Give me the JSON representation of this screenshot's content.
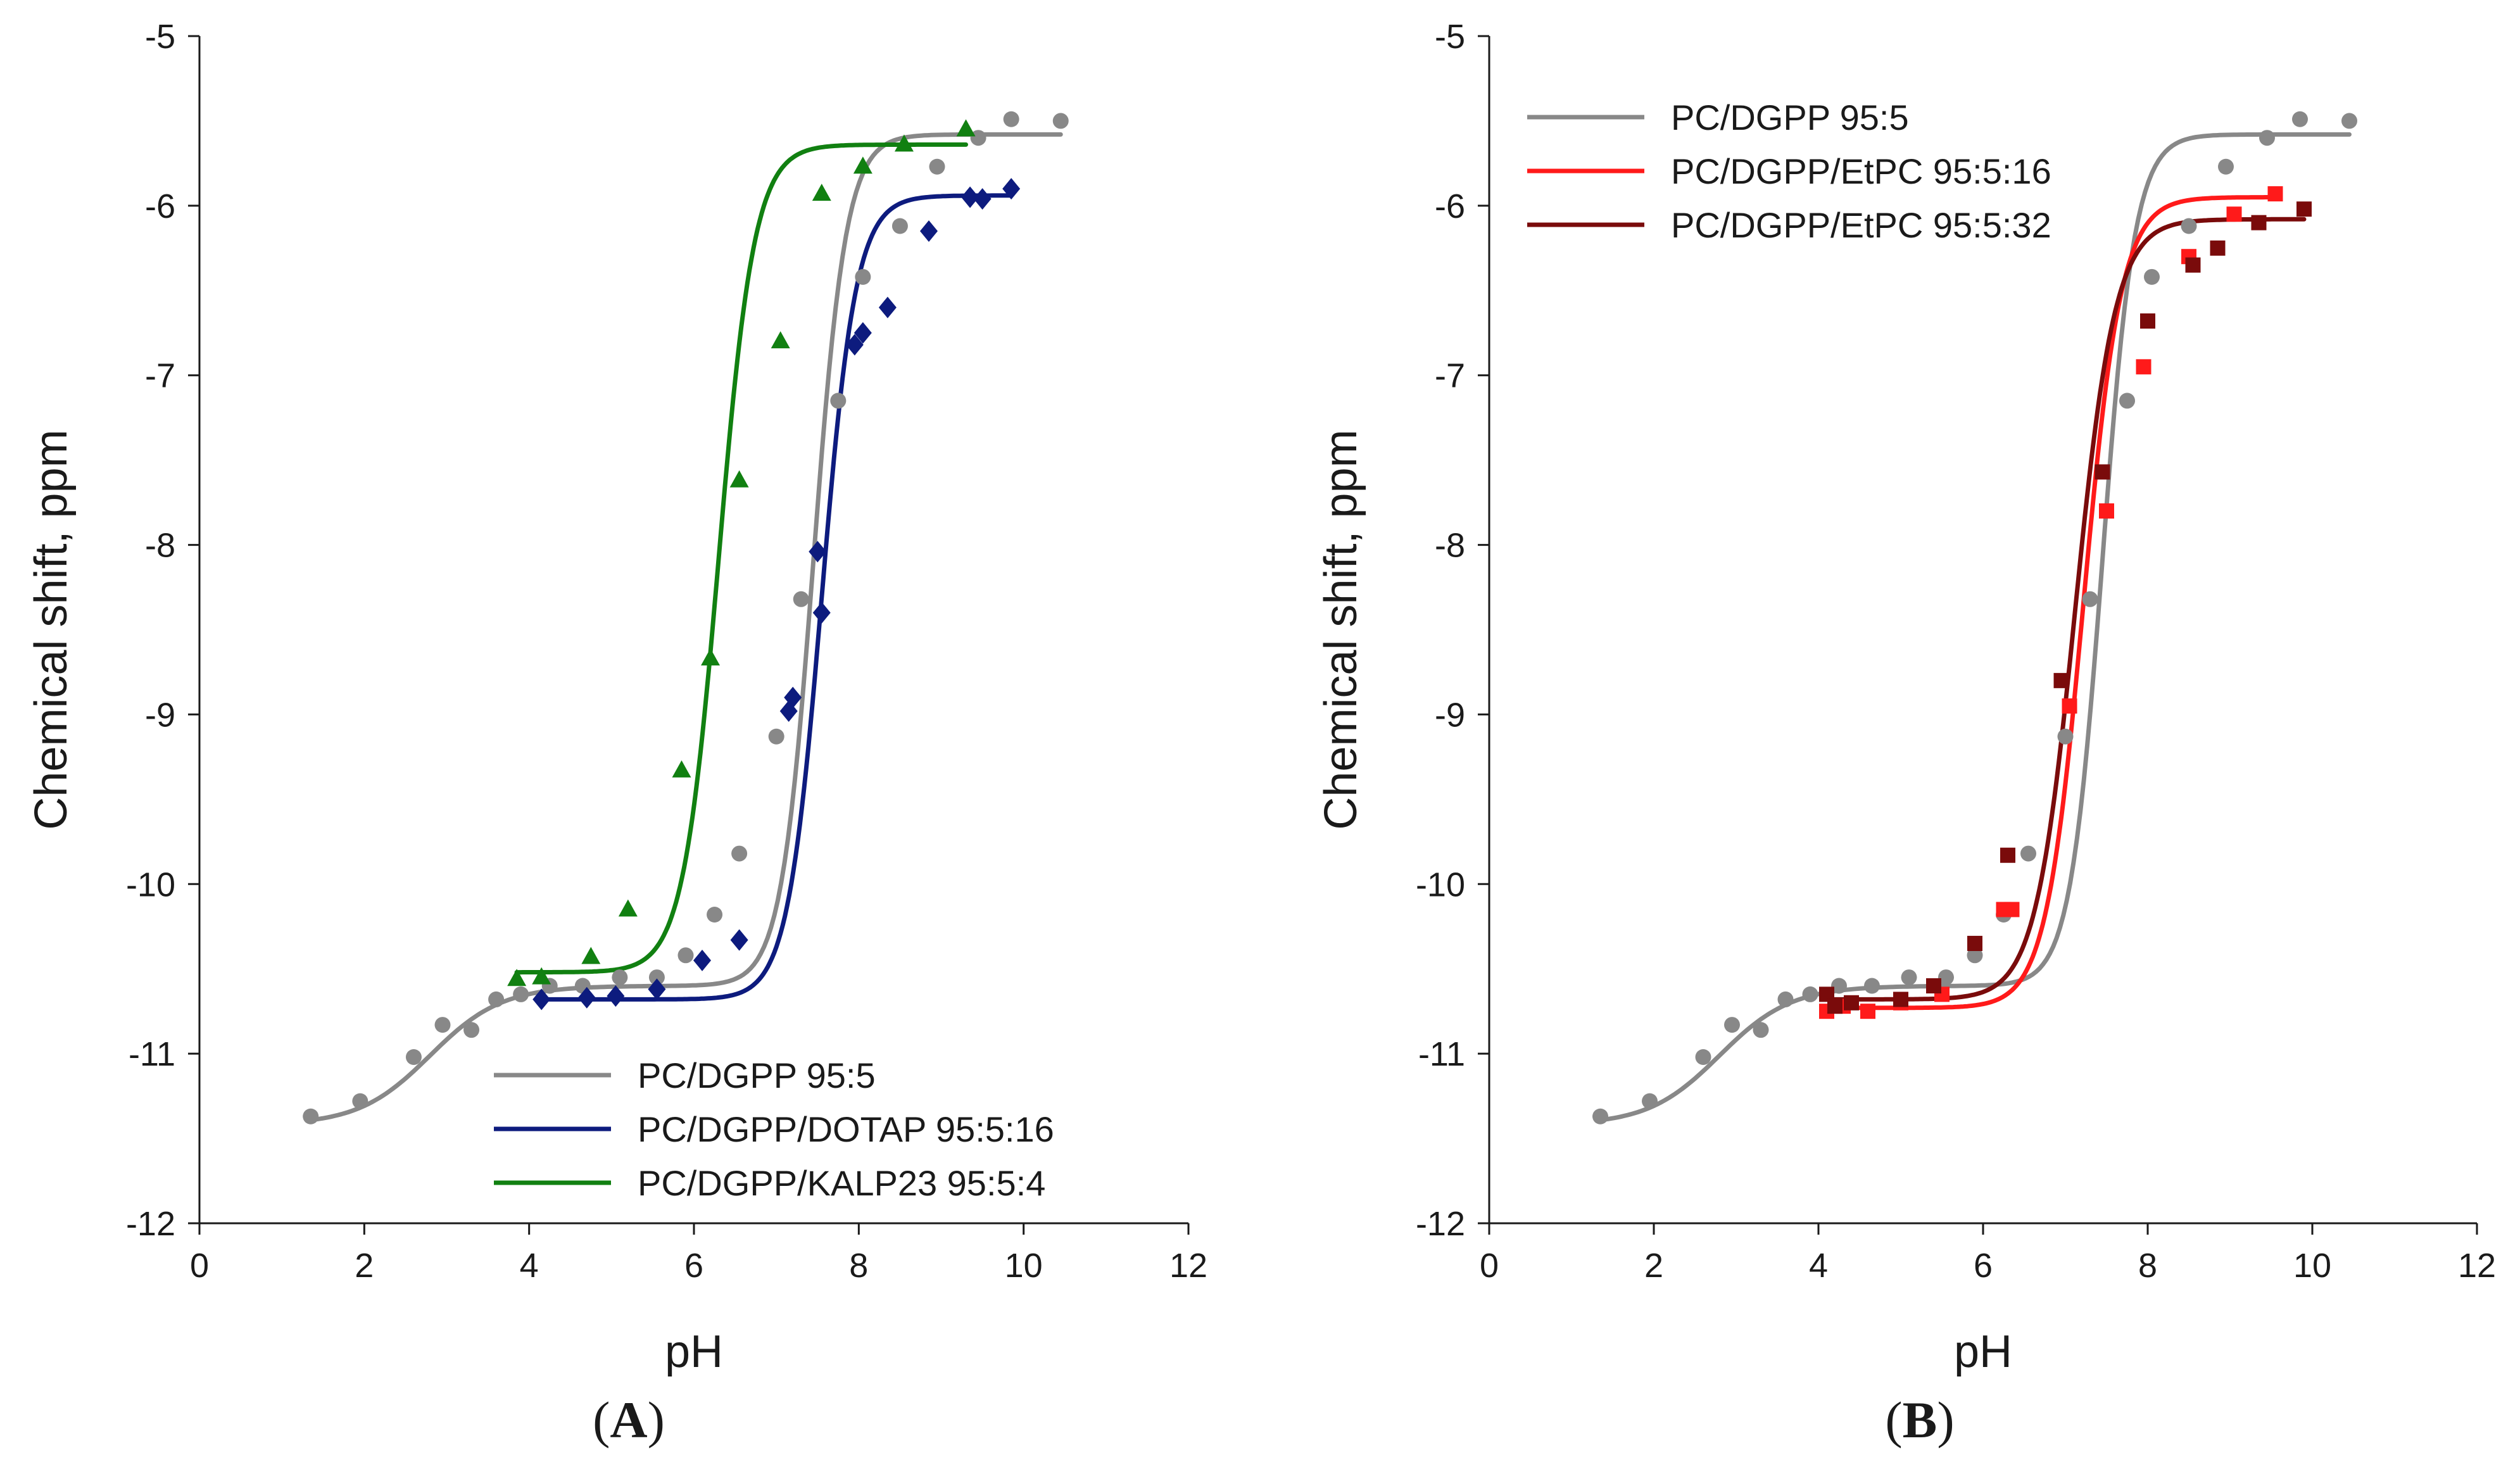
{
  "chart_data": [
    {
      "type": "scatter",
      "title": "",
      "xlabel": "pH",
      "ylabel": "Chemical shift, ppm",
      "panel_label": {
        "open": "(",
        "letter": "A",
        "close": ")"
      },
      "xlim": [
        0,
        12
      ],
      "ylim": [
        -12,
        -5
      ],
      "xticks": [
        "0",
        "2",
        "4",
        "6",
        "8",
        "10",
        "12"
      ],
      "yticks": [
        "-5",
        "-6",
        "-7",
        "-8",
        "-9",
        "-10",
        "-11",
        "-12"
      ],
      "grid": false,
      "legend_position": "bottom-right",
      "series": [
        {
          "name": "PC/DGPP 95:5",
          "color": "#888888",
          "marker": "circle",
          "points": [
            [
              1.35,
              -11.37
            ],
            [
              1.95,
              -11.28
            ],
            [
              2.6,
              -11.02
            ],
            [
              2.95,
              -10.83
            ],
            [
              3.3,
              -10.86
            ],
            [
              3.6,
              -10.68
            ],
            [
              3.9,
              -10.65
            ],
            [
              4.25,
              -10.6
            ],
            [
              4.65,
              -10.6
            ],
            [
              5.1,
              -10.55
            ],
            [
              5.55,
              -10.55
            ],
            [
              5.9,
              -10.42
            ],
            [
              6.25,
              -10.18
            ],
            [
              6.55,
              -9.82
            ],
            [
              7.0,
              -9.13
            ],
            [
              7.3,
              -8.32
            ],
            [
              7.75,
              -7.15
            ],
            [
              8.05,
              -6.42
            ],
            [
              8.5,
              -6.12
            ],
            [
              8.95,
              -5.77
            ],
            [
              9.45,
              -5.6
            ],
            [
              9.85,
              -5.49
            ],
            [
              10.45,
              -5.5
            ]
          ],
          "fit": {
            "bottom": -11.42,
            "mid": -10.6,
            "top": -5.58,
            "pka1": 2.8,
            "pka2": 7.45,
            "slope1": 1.0,
            "slope2": 2.2,
            "xrange": [
              1.35,
              10.45
            ]
          }
        },
        {
          "name": "PC/DGPP/DOTAP 95:5:16",
          "color": "#0d1b7e",
          "marker": "diamond",
          "points": [
            [
              4.15,
              -10.68
            ],
            [
              4.7,
              -10.67
            ],
            [
              5.05,
              -10.66
            ],
            [
              5.55,
              -10.62
            ],
            [
              6.1,
              -10.45
            ],
            [
              6.55,
              -10.33
            ],
            [
              7.15,
              -8.98
            ],
            [
              7.2,
              -8.9
            ],
            [
              7.5,
              -8.04
            ],
            [
              7.55,
              -8.4
            ],
            [
              7.95,
              -6.82
            ],
            [
              8.05,
              -6.75
            ],
            [
              8.35,
              -6.6
            ],
            [
              8.85,
              -6.15
            ],
            [
              9.35,
              -5.95
            ],
            [
              9.5,
              -5.96
            ],
            [
              9.85,
              -5.9
            ]
          ],
          "fit": {
            "bottom": -10.68,
            "top": -5.94,
            "pka": 7.55,
            "slope": 2.1,
            "xrange": [
              4.15,
              9.85
            ]
          }
        },
        {
          "name": "PC/DGPP/KALP23 95:5:4",
          "color": "#118011",
          "marker": "triangle",
          "points": [
            [
              3.85,
              -10.56
            ],
            [
              4.15,
              -10.55
            ],
            [
              4.75,
              -10.43
            ],
            [
              5.2,
              -10.15
            ],
            [
              5.85,
              -9.33
            ],
            [
              6.2,
              -8.67
            ],
            [
              6.55,
              -7.62
            ],
            [
              7.05,
              -6.8
            ],
            [
              7.55,
              -5.93
            ],
            [
              8.05,
              -5.77
            ],
            [
              8.55,
              -5.64
            ],
            [
              9.3,
              -5.55
            ]
          ],
          "fit": {
            "bottom": -10.52,
            "top": -5.64,
            "pka": 6.3,
            "slope": 2.0,
            "xrange": [
              3.85,
              9.3
            ]
          }
        }
      ]
    },
    {
      "type": "scatter",
      "title": "",
      "xlabel": "pH",
      "ylabel": "Chemical shift, ppm",
      "panel_label": {
        "open": "(",
        "letter": "B",
        "close": ")"
      },
      "xlim": [
        0,
        12
      ],
      "ylim": [
        -12,
        -5
      ],
      "xticks": [
        "0",
        "2",
        "4",
        "6",
        "8",
        "10",
        "12"
      ],
      "yticks": [
        "-5",
        "-6",
        "-7",
        "-8",
        "-9",
        "-10",
        "-11",
        "-12"
      ],
      "grid": false,
      "legend_position": "top-left",
      "series": [
        {
          "name": "PC/DGPP 95:5",
          "color": "#888888",
          "marker": "circle",
          "points": [
            [
              1.35,
              -11.37
            ],
            [
              1.95,
              -11.28
            ],
            [
              2.6,
              -11.02
            ],
            [
              2.95,
              -10.83
            ],
            [
              3.3,
              -10.86
            ],
            [
              3.6,
              -10.68
            ],
            [
              3.9,
              -10.65
            ],
            [
              4.25,
              -10.6
            ],
            [
              4.65,
              -10.6
            ],
            [
              5.1,
              -10.55
            ],
            [
              5.55,
              -10.55
            ],
            [
              5.9,
              -10.42
            ],
            [
              6.25,
              -10.18
            ],
            [
              6.55,
              -9.82
            ],
            [
              7.0,
              -9.13
            ],
            [
              7.3,
              -8.32
            ],
            [
              7.75,
              -7.15
            ],
            [
              8.05,
              -6.42
            ],
            [
              8.5,
              -6.12
            ],
            [
              8.95,
              -5.77
            ],
            [
              9.45,
              -5.6
            ],
            [
              9.85,
              -5.49
            ],
            [
              10.45,
              -5.5
            ]
          ],
          "fit": {
            "bottom": -11.42,
            "mid": -10.6,
            "top": -5.58,
            "pka1": 2.8,
            "pka2": 7.45,
            "slope1": 1.0,
            "slope2": 2.2,
            "xrange": [
              1.35,
              10.45
            ]
          }
        },
        {
          "name": "PC/DGPP/EtPC 95:5:16",
          "color": "#ff1a1a",
          "marker": "square",
          "points": [
            [
              4.1,
              -10.75
            ],
            [
              4.3,
              -10.72
            ],
            [
              4.6,
              -10.75
            ],
            [
              5.0,
              -10.7
            ],
            [
              5.5,
              -10.65
            ],
            [
              6.25,
              -10.15
            ],
            [
              6.35,
              -10.15
            ],
            [
              7.05,
              -8.95
            ],
            [
              7.5,
              -7.8
            ],
            [
              7.95,
              -6.95
            ],
            [
              8.5,
              -6.3
            ],
            [
              9.05,
              -6.05
            ],
            [
              9.55,
              -5.93
            ]
          ],
          "fit": {
            "bottom": -10.73,
            "top": -5.95,
            "pka": 7.22,
            "slope": 1.9,
            "xrange": [
              4.1,
              9.55
            ]
          }
        },
        {
          "name": "PC/DGPP/EtPC 95:5:32",
          "color": "#7a0b0b",
          "marker": "square",
          "points": [
            [
              4.1,
              -10.65
            ],
            [
              4.2,
              -10.72
            ],
            [
              4.4,
              -10.7
            ],
            [
              5.0,
              -10.68
            ],
            [
              5.4,
              -10.6
            ],
            [
              5.9,
              -10.35
            ],
            [
              6.3,
              -9.83
            ],
            [
              6.95,
              -8.8
            ],
            [
              7.45,
              -7.57
            ],
            [
              8.0,
              -6.68
            ],
            [
              8.55,
              -6.35
            ],
            [
              8.85,
              -6.25
            ],
            [
              9.35,
              -6.1
            ],
            [
              9.9,
              -6.02
            ]
          ],
          "fit": {
            "bottom": -10.68,
            "top": -6.08,
            "pka": 7.12,
            "slope": 1.8,
            "xrange": [
              4.1,
              9.9
            ]
          }
        }
      ]
    }
  ]
}
